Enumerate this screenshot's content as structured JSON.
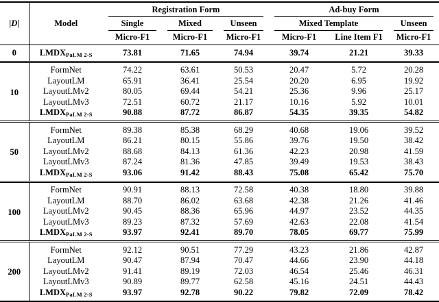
{
  "table": {
    "dataset_size_label": "|D|",
    "model_label": "Model",
    "groups": [
      {
        "label": "Registration Form",
        "subgroups": [
          {
            "label": "Single",
            "metrics": [
              "Micro-F1"
            ]
          },
          {
            "label": "Mixed",
            "metrics": [
              "Micro-F1"
            ]
          },
          {
            "label": "Unseen",
            "metrics": [
              "Micro-F1"
            ]
          }
        ]
      },
      {
        "label": "Ad-buy Form",
        "subgroups": [
          {
            "label": "Mixed Template",
            "metrics": [
              "Micro-F1",
              "Line Item F1"
            ]
          },
          {
            "label": "Unseen",
            "metrics": [
              "Micro-F1"
            ]
          }
        ]
      }
    ],
    "blocks": [
      {
        "size": "0",
        "rows": [
          {
            "model": "LMDX",
            "model_sub": "PaLM 2-S",
            "bold": true,
            "values": [
              "73.81",
              "71.65",
              "74.94",
              "39.74",
              "21.21",
              "39.33"
            ]
          }
        ]
      },
      {
        "size": "10",
        "rows": [
          {
            "model": "FormNet",
            "values": [
              "74.22",
              "63.61",
              "50.53",
              "20.47",
              "5.72",
              "20.28"
            ]
          },
          {
            "model": "LayoutLM",
            "values": [
              "65.91",
              "36.41",
              "25.54",
              "20.20",
              "6.95",
              "19.92"
            ]
          },
          {
            "model": "LayoutLMv2",
            "values": [
              "80.05",
              "69.44",
              "54.21",
              "25.36",
              "9.96",
              "25.17"
            ]
          },
          {
            "model": "LayoutLMv3",
            "values": [
              "72.51",
              "60.72",
              "21.17",
              "10.16",
              "5.92",
              "10.01"
            ]
          },
          {
            "model": "LMDX",
            "model_sub": "PaLM 2-S",
            "bold": true,
            "values": [
              "90.88",
              "87.72",
              "86.87",
              "54.35",
              "39.35",
              "54.82"
            ]
          }
        ]
      },
      {
        "size": "50",
        "rows": [
          {
            "model": "FormNet",
            "values": [
              "89.38",
              "85.38",
              "68.29",
              "40.68",
              "19.06",
              "39.52"
            ]
          },
          {
            "model": "LayoutLM",
            "values": [
              "86.21",
              "80.15",
              "55.86",
              "39.76",
              "19.50",
              "38.42"
            ]
          },
          {
            "model": "LayoutLMv2",
            "values": [
              "88.68",
              "84.13",
              "61.36",
              "42.23",
              "20.98",
              "41.59"
            ]
          },
          {
            "model": "LayoutLMv3",
            "values": [
              "87.24",
              "81.36",
              "47.85",
              "39.49",
              "19.53",
              "38.43"
            ]
          },
          {
            "model": "LMDX",
            "model_sub": "PaLM 2-S",
            "bold": true,
            "values": [
              "93.06",
              "91.42",
              "88.43",
              "75.08",
              "65.42",
              "75.70"
            ]
          }
        ]
      },
      {
        "size": "100",
        "rows": [
          {
            "model": "FormNet",
            "values": [
              "90.91",
              "88.13",
              "72.58",
              "40.38",
              "18.80",
              "39.88"
            ]
          },
          {
            "model": "LayoutLM",
            "values": [
              "88.70",
              "86.02",
              "63.68",
              "42.38",
              "21.26",
              "41.46"
            ]
          },
          {
            "model": "LayoutLMv2",
            "values": [
              "90.45",
              "88.36",
              "65.96",
              "44.97",
              "23.52",
              "44.35"
            ]
          },
          {
            "model": "LayoutLMv3",
            "values": [
              "89.23",
              "87.32",
              "57.69",
              "42.63",
              "22.08",
              "41.54"
            ]
          },
          {
            "model": "LMDX",
            "model_sub": "PaLM 2-S",
            "bold": true,
            "values": [
              "93.97",
              "92.41",
              "89.70",
              "78.05",
              "69.77",
              "75.99"
            ]
          }
        ]
      },
      {
        "size": "200",
        "rows": [
          {
            "model": "FormNet",
            "values": [
              "92.12",
              "90.51",
              "77.29",
              "43.23",
              "21.86",
              "42.87"
            ]
          },
          {
            "model": "LayoutLM",
            "values": [
              "90.47",
              "87.94",
              "70.47",
              "44.66",
              "23.90",
              "44.18"
            ]
          },
          {
            "model": "LayoutLMv2",
            "values": [
              "91.41",
              "89.19",
              "72.03",
              "46.54",
              "25.46",
              "46.31"
            ]
          },
          {
            "model": "LayoutLMv3",
            "values": [
              "90.89",
              "89.77",
              "62.58",
              "45.16",
              "24.51",
              "44.43"
            ]
          },
          {
            "model": "LMDX",
            "model_sub": "PaLM 2-S",
            "bold": true,
            "values": [
              "93.97",
              "92.78",
              "90.22",
              "79.82",
              "72.09",
              "78.42"
            ]
          }
        ]
      }
    ]
  }
}
